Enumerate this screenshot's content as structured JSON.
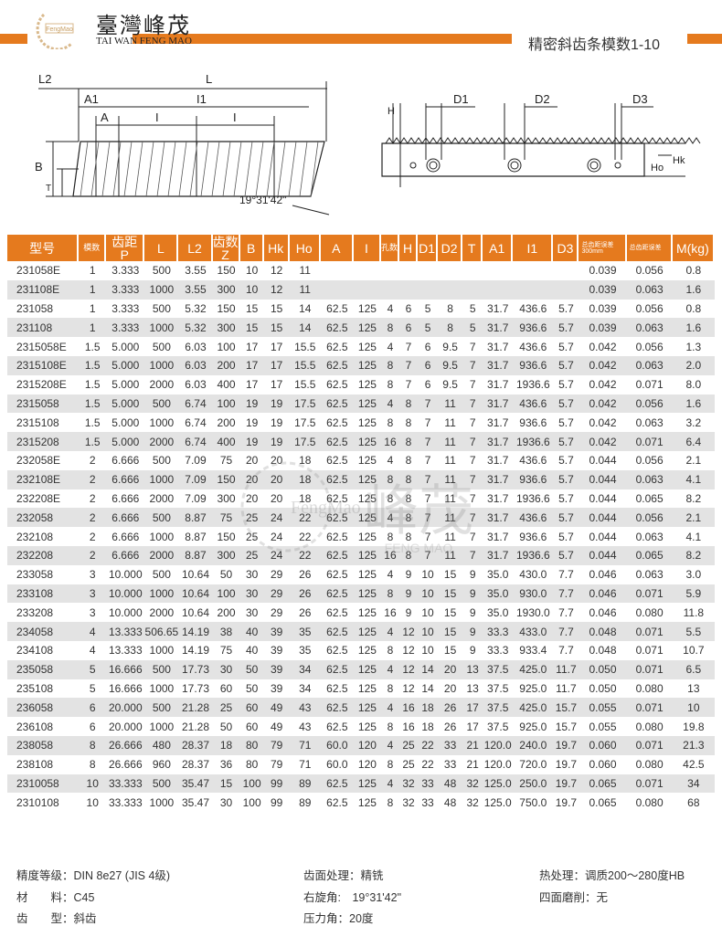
{
  "header": {
    "brand_cn": "臺灣峰茂",
    "brand_en": "TAI WAN FENG MAO",
    "logo_text": "FengMao",
    "title": "精密斜齿条模数1-10",
    "accent_color": "#e57a1e"
  },
  "drawing": {
    "labels": {
      "L2": "L2",
      "L": "L",
      "A1": "A1",
      "I1": "I1",
      "A": "A",
      "I": "I",
      "B": "B",
      "T": "T",
      "angle": "19°31'42\"",
      "H": "H",
      "D1": "D1",
      "D2": "D2",
      "D3": "D3",
      "Ho": "Ho",
      "Hk": "Hk"
    }
  },
  "table": {
    "columns": [
      "型号",
      "模数",
      "齿距 P",
      "L",
      "L2",
      "齿数 Z",
      "B",
      "Hk",
      "Ho",
      "A",
      "I",
      "孔数",
      "H",
      "D1",
      "D2",
      "T",
      "A1",
      "I1",
      "D3",
      "总齿距误差 300mm",
      "总齿距误差",
      "M(kg)"
    ],
    "rows": [
      [
        "231058E",
        "1",
        "3.333",
        "500",
        "3.55",
        "150",
        "10",
        "12",
        "11",
        "",
        "",
        "",
        "",
        "",
        "",
        "",
        "",
        "",
        "",
        "0.039",
        "0.056",
        "0.8"
      ],
      [
        "231108E",
        "1",
        "3.333",
        "1000",
        "3.55",
        "300",
        "10",
        "12",
        "11",
        "",
        "",
        "",
        "",
        "",
        "",
        "",
        "",
        "",
        "",
        "0.039",
        "0.063",
        "1.6"
      ],
      [
        "231058",
        "1",
        "3.333",
        "500",
        "5.32",
        "150",
        "15",
        "15",
        "14",
        "62.5",
        "125",
        "4",
        "6",
        "5",
        "8",
        "5",
        "31.7",
        "436.6",
        "5.7",
        "0.039",
        "0.056",
        "0.8"
      ],
      [
        "231108",
        "1",
        "3.333",
        "1000",
        "5.32",
        "300",
        "15",
        "15",
        "14",
        "62.5",
        "125",
        "8",
        "6",
        "5",
        "8",
        "5",
        "31.7",
        "936.6",
        "5.7",
        "0.039",
        "0.063",
        "1.6"
      ],
      [
        "2315058E",
        "1.5",
        "5.000",
        "500",
        "6.03",
        "100",
        "17",
        "17",
        "15.5",
        "62.5",
        "125",
        "4",
        "7",
        "6",
        "9.5",
        "7",
        "31.7",
        "436.6",
        "5.7",
        "0.042",
        "0.056",
        "1.3"
      ],
      [
        "2315108E",
        "1.5",
        "5.000",
        "1000",
        "6.03",
        "200",
        "17",
        "17",
        "15.5",
        "62.5",
        "125",
        "8",
        "7",
        "6",
        "9.5",
        "7",
        "31.7",
        "936.6",
        "5.7",
        "0.042",
        "0.063",
        "2.0"
      ],
      [
        "2315208E",
        "1.5",
        "5.000",
        "2000",
        "6.03",
        "400",
        "17",
        "17",
        "15.5",
        "62.5",
        "125",
        "8",
        "7",
        "6",
        "9.5",
        "7",
        "31.7",
        "1936.6",
        "5.7",
        "0.042",
        "0.071",
        "8.0"
      ],
      [
        "2315058",
        "1.5",
        "5.000",
        "500",
        "6.74",
        "100",
        "19",
        "19",
        "17.5",
        "62.5",
        "125",
        "4",
        "8",
        "7",
        "11",
        "7",
        "31.7",
        "436.6",
        "5.7",
        "0.042",
        "0.056",
        "1.6"
      ],
      [
        "2315108",
        "1.5",
        "5.000",
        "1000",
        "6.74",
        "200",
        "19",
        "19",
        "17.5",
        "62.5",
        "125",
        "8",
        "8",
        "7",
        "11",
        "7",
        "31.7",
        "936.6",
        "5.7",
        "0.042",
        "0.063",
        "3.2"
      ],
      [
        "2315208",
        "1.5",
        "5.000",
        "2000",
        "6.74",
        "400",
        "19",
        "19",
        "17.5",
        "62.5",
        "125",
        "16",
        "8",
        "7",
        "11",
        "7",
        "31.7",
        "1936.6",
        "5.7",
        "0.042",
        "0.071",
        "6.4"
      ],
      [
        "232058E",
        "2",
        "6.666",
        "500",
        "7.09",
        "75",
        "20",
        "20",
        "18",
        "62.5",
        "125",
        "4",
        "8",
        "7",
        "11",
        "7",
        "31.7",
        "436.6",
        "5.7",
        "0.044",
        "0.056",
        "2.1"
      ],
      [
        "232108E",
        "2",
        "6.666",
        "1000",
        "7.09",
        "150",
        "20",
        "20",
        "18",
        "62.5",
        "125",
        "8",
        "8",
        "7",
        "11",
        "7",
        "31.7",
        "936.6",
        "5.7",
        "0.044",
        "0.063",
        "4.1"
      ],
      [
        "232208E",
        "2",
        "6.666",
        "2000",
        "7.09",
        "300",
        "20",
        "20",
        "18",
        "62.5",
        "125",
        "8",
        "8",
        "7",
        "11",
        "7",
        "31.7",
        "1936.6",
        "5.7",
        "0.044",
        "0.065",
        "8.2"
      ],
      [
        "232058",
        "2",
        "6.666",
        "500",
        "8.87",
        "75",
        "25",
        "24",
        "22",
        "62.5",
        "125",
        "4",
        "8",
        "7",
        "11",
        "7",
        "31.7",
        "436.6",
        "5.7",
        "0.044",
        "0.056",
        "2.1"
      ],
      [
        "232108",
        "2",
        "6.666",
        "1000",
        "8.87",
        "150",
        "25",
        "24",
        "22",
        "62.5",
        "125",
        "8",
        "8",
        "7",
        "11",
        "7",
        "31.7",
        "936.6",
        "5.7",
        "0.044",
        "0.063",
        "4.1"
      ],
      [
        "232208",
        "2",
        "6.666",
        "2000",
        "8.87",
        "300",
        "25",
        "24",
        "22",
        "62.5",
        "125",
        "16",
        "8",
        "7",
        "11",
        "7",
        "31.7",
        "1936.6",
        "5.7",
        "0.044",
        "0.065",
        "8.2"
      ],
      [
        "233058",
        "3",
        "10.000",
        "500",
        "10.64",
        "50",
        "30",
        "29",
        "26",
        "62.5",
        "125",
        "4",
        "9",
        "10",
        "15",
        "9",
        "35.0",
        "430.0",
        "7.7",
        "0.046",
        "0.063",
        "3.0"
      ],
      [
        "233108",
        "3",
        "10.000",
        "1000",
        "10.64",
        "100",
        "30",
        "29",
        "26",
        "62.5",
        "125",
        "8",
        "9",
        "10",
        "15",
        "9",
        "35.0",
        "930.0",
        "7.7",
        "0.046",
        "0.071",
        "5.9"
      ],
      [
        "233208",
        "3",
        "10.000",
        "2000",
        "10.64",
        "200",
        "30",
        "29",
        "26",
        "62.5",
        "125",
        "16",
        "9",
        "10",
        "15",
        "9",
        "35.0",
        "1930.0",
        "7.7",
        "0.046",
        "0.080",
        "11.8"
      ],
      [
        "234058",
        "4",
        "13.333",
        "506.65",
        "14.19",
        "38",
        "40",
        "39",
        "35",
        "62.5",
        "125",
        "4",
        "12",
        "10",
        "15",
        "9",
        "33.3",
        "433.0",
        "7.7",
        "0.048",
        "0.071",
        "5.5"
      ],
      [
        "234108",
        "4",
        "13.333",
        "1000",
        "14.19",
        "75",
        "40",
        "39",
        "35",
        "62.5",
        "125",
        "8",
        "12",
        "10",
        "15",
        "9",
        "33.3",
        "933.4",
        "7.7",
        "0.048",
        "0.071",
        "10.7"
      ],
      [
        "235058",
        "5",
        "16.666",
        "500",
        "17.73",
        "30",
        "50",
        "39",
        "34",
        "62.5",
        "125",
        "4",
        "12",
        "14",
        "20",
        "13",
        "37.5",
        "425.0",
        "11.7",
        "0.050",
        "0.071",
        "6.5"
      ],
      [
        "235108",
        "5",
        "16.666",
        "1000",
        "17.73",
        "60",
        "50",
        "39",
        "34",
        "62.5",
        "125",
        "8",
        "12",
        "14",
        "20",
        "13",
        "37.5",
        "925.0",
        "11.7",
        "0.050",
        "0.080",
        "13"
      ],
      [
        "236058",
        "6",
        "20.000",
        "500",
        "21.28",
        "25",
        "60",
        "49",
        "43",
        "62.5",
        "125",
        "4",
        "16",
        "18",
        "26",
        "17",
        "37.5",
        "425.0",
        "15.7",
        "0.055",
        "0.071",
        "10"
      ],
      [
        "236108",
        "6",
        "20.000",
        "1000",
        "21.28",
        "50",
        "60",
        "49",
        "43",
        "62.5",
        "125",
        "8",
        "16",
        "18",
        "26",
        "17",
        "37.5",
        "925.0",
        "15.7",
        "0.055",
        "0.080",
        "19.8"
      ],
      [
        "238058",
        "8",
        "26.666",
        "480",
        "28.37",
        "18",
        "80",
        "79",
        "71",
        "60.0",
        "120",
        "4",
        "25",
        "22",
        "33",
        "21",
        "120.0",
        "240.0",
        "19.7",
        "0.060",
        "0.071",
        "21.3"
      ],
      [
        "238108",
        "8",
        "26.666",
        "960",
        "28.37",
        "36",
        "80",
        "79",
        "71",
        "60.0",
        "120",
        "8",
        "25",
        "22",
        "33",
        "21",
        "120.0",
        "720.0",
        "19.7",
        "0.060",
        "0.080",
        "42.5"
      ],
      [
        "2310058",
        "10",
        "33.333",
        "500",
        "35.47",
        "15",
        "100",
        "99",
        "89",
        "62.5",
        "125",
        "4",
        "32",
        "33",
        "48",
        "32",
        "125.0",
        "250.0",
        "19.7",
        "0.065",
        "0.071",
        "34"
      ],
      [
        "2310108",
        "10",
        "33.333",
        "1000",
        "35.47",
        "30",
        "100",
        "99",
        "89",
        "62.5",
        "125",
        "8",
        "32",
        "33",
        "48",
        "32",
        "125.0",
        "750.0",
        "19.7",
        "0.065",
        "0.080",
        "68"
      ]
    ]
  },
  "watermark": {
    "text_en": "FengMao",
    "text_cn": "峰茂",
    "text_sub": "FENG   MAO"
  },
  "specs": {
    "precision": "精度等级：DIN 8e27 (JIS 4级)",
    "material": "材　　料：C45",
    "tooth_type": "齿　　型：斜齿",
    "surface": "齿面处理：精铣",
    "helix": "右旋角:　19°31'42\"",
    "pressure": "压力角：20度",
    "heat": "热处理：调质200～280度HB",
    "grinding": "四面磨削：无"
  }
}
